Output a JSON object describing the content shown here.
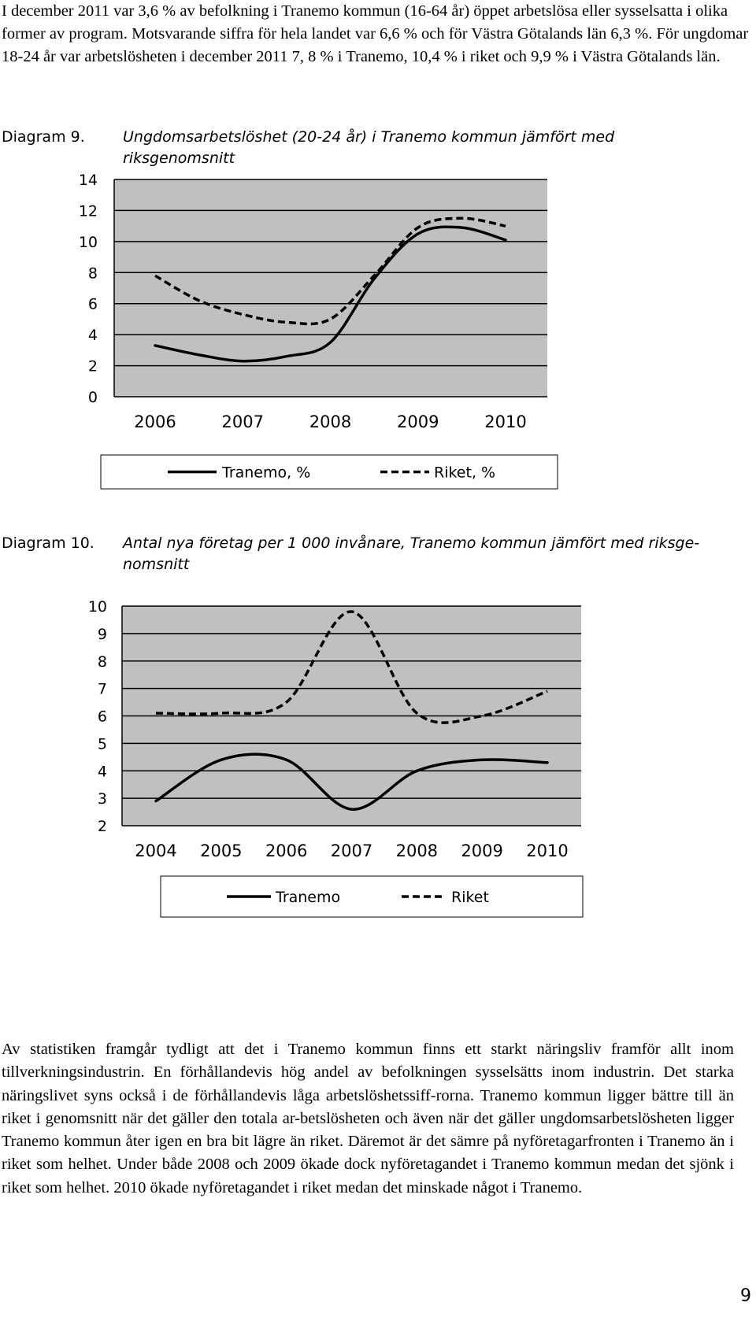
{
  "intro_text": "I december 2011 var 3,6 % av befolkning i Tranemo kommun (16-64 år) öppet arbetslösa eller sysselsatta i olika former av program. Motsvarande siffra för hela landet var 6,6 % och för Västra Götalands län 6,3 %. För ungdomar 18-24 år var arbetslösheten i december 2011 7, 8 % i Tranemo, 10,4 % i riket och 9,9 % i Västra Götalands län.",
  "diagram9": {
    "label": "Diagram 9.",
    "title": "Ungdomsarbetslöshet (20-24 år) i Tranemo kommun jämfört med riksgenomsnitt"
  },
  "diagram10": {
    "label": "Diagram 10.",
    "title": "Antal nya företag per 1 000 invånare, Tranemo kommun jämfört med riksge-nomsnitt"
  },
  "outro_text": "Av statistiken framgår tydligt att det i Tranemo kommun finns ett starkt näringsliv framför allt inom tillverkningsindustrin. En förhållandevis hög andel av befolkningen sysselsätts inom industrin. Det starka näringslivet syns också i de förhållandevis låga arbetslöshetssiff-rorna. Tranemo kommun ligger bättre till än riket i genomsnitt när det gäller den totala ar-betslösheten och även när det gäller ungdomsarbetslösheten ligger Tranemo kommun åter igen en bra bit lägre än riket. Däremot är det sämre på nyföretagarfronten i Tranemo än i riket som helhet. Under både 2008 och 2009 ökade dock nyföretagandet i Tranemo kommun medan det sjönk i riket som helhet. 2010 ökade nyföretagandet i riket medan det minskade något i Tranemo.",
  "page_number": "9",
  "chart_data": [
    {
      "type": "line",
      "categories": [
        "2006",
        "2007",
        "2008",
        "2009",
        "2010"
      ],
      "x": [
        2006,
        2006.5,
        2007,
        2007.5,
        2008,
        2008.5,
        2009,
        2009.5,
        2010
      ],
      "ylim": [
        0,
        14
      ],
      "yticks": [
        "0",
        "2",
        "4",
        "6",
        "8",
        "10",
        "12",
        "14"
      ],
      "grid": true,
      "legend_position": "bottom",
      "series": [
        {
          "name": "Tranemo, %",
          "style": "solid",
          "values": [
            3.3,
            2.7,
            2.3,
            2.6,
            3.5,
            7.6,
            10.5,
            10.9,
            10.1
          ]
        },
        {
          "name": "Riket, %",
          "style": "dashed",
          "values": [
            7.8,
            6.2,
            5.3,
            4.8,
            5.0,
            7.8,
            10.9,
            11.5,
            11.0
          ]
        }
      ]
    },
    {
      "type": "line",
      "categories": [
        "2004",
        "2005",
        "2006",
        "2007",
        "2008",
        "2009",
        "2010"
      ],
      "x": [
        2004,
        2005,
        2006,
        2007,
        2008,
        2009,
        2010
      ],
      "ylim": [
        2,
        10
      ],
      "yticks": [
        "2",
        "3",
        "4",
        "5",
        "6",
        "7",
        "8",
        "9",
        "10"
      ],
      "grid": true,
      "legend_position": "bottom",
      "series": [
        {
          "name": "Tranemo",
          "style": "solid",
          "values": [
            2.9,
            4.4,
            4.4,
            2.6,
            4.0,
            4.4,
            4.3
          ]
        },
        {
          "name": "Riket",
          "style": "dashed",
          "values": [
            6.1,
            6.1,
            6.5,
            9.8,
            6.1,
            6.0,
            6.9
          ]
        }
      ]
    }
  ]
}
